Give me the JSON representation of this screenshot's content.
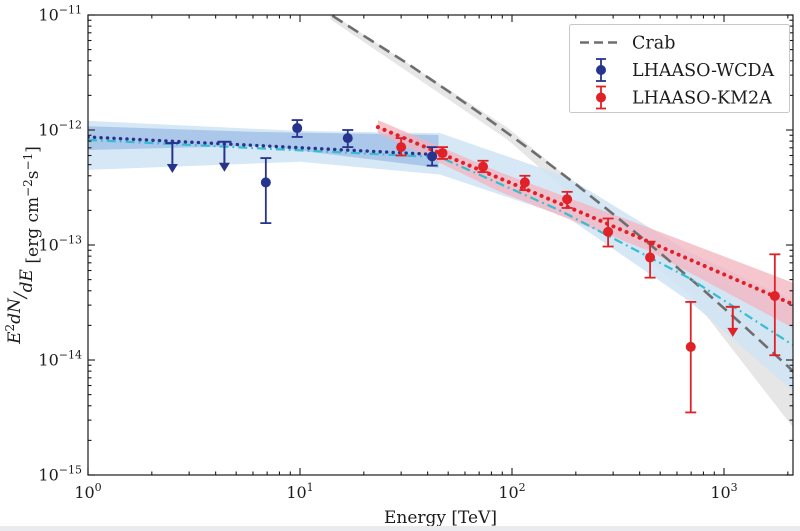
{
  "figure": {
    "background": "#ffffff"
  },
  "chart_data": {
    "type": "scatter",
    "title": "",
    "xlabel": "Energy [TeV]",
    "ylabel": "E²dN/dE [erg cm⁻²s⁻¹]",
    "ylabel_rich": [
      {
        "t": "E",
        "i": true
      },
      {
        "t": "2",
        "sup": true
      },
      {
        "t": "dN",
        "i": true
      },
      {
        "t": "/",
        "i": true
      },
      {
        "t": "dE",
        "i": true
      },
      {
        "t": " [erg cm"
      },
      {
        "t": "−2",
        "sup": true
      },
      {
        "t": "s"
      },
      {
        "t": "−1",
        "sup": true
      },
      {
        "t": "]"
      }
    ],
    "xscale": "log",
    "yscale": "log",
    "xlim": [
      1,
      2113
    ],
    "ylim": [
      1e-15,
      1e-11
    ],
    "x_tick_exponents": [
      0,
      1,
      2,
      3
    ],
    "y_tick_exponents": [
      -11,
      -12,
      -13,
      -14,
      -15
    ],
    "grid": false,
    "legend": {
      "position": "upper right",
      "entries": [
        {
          "label": "Crab",
          "marker": "dashed-line",
          "color": "#6e6e6e"
        },
        {
          "label": "LHAASO-WCDA",
          "marker": "errorbar-point",
          "color": "#27348e"
        },
        {
          "label": "LHAASO-KM2A",
          "marker": "errorbar-point",
          "color": "#e02128"
        }
      ]
    },
    "colors": {
      "wcda": "#27348e",
      "km2a": "#e02128",
      "crab": "#6e6e6e",
      "model_line": "#35bdd0",
      "wcda_band": "#a9c6e9",
      "model_band": "#cfe3f4",
      "km2a_band": "#f3b3bd",
      "crab_band": "#d2d2d2"
    },
    "series": {
      "crab_line": {
        "name": "Crab",
        "style": "dashed",
        "points": [
          [
            12,
            1.2e-11
          ],
          [
            20,
            6.6e-12
          ],
          [
            31.6,
            3.86e-12
          ],
          [
            50,
            2.18e-12
          ],
          [
            79.4,
            1.2e-12
          ],
          [
            126,
            6.45e-13
          ],
          [
            200,
            3.38e-13
          ],
          [
            316,
            1.72e-13
          ],
          [
            501,
            8.5e-14
          ],
          [
            794,
            4.11e-14
          ],
          [
            1259,
            1.93e-14
          ],
          [
            1995,
            8.85e-15
          ],
          [
            2239,
            7.2e-15
          ]
        ]
      },
      "crab_band": {
        "top": [
          [
            13.9,
            1.04e-11
          ],
          [
            95.6,
            1.04e-12
          ],
          [
            331,
            1.57e-13
          ],
          [
            692,
            6.7e-14
          ],
          [
            2113,
            1.9e-14
          ]
        ],
        "bottom": [
          [
            13.9,
            9.2e-12
          ],
          [
            95.6,
            8.2e-13
          ],
          [
            331,
            1.1e-13
          ],
          [
            692,
            3.7e-14
          ],
          [
            2113,
            2.6e-15
          ]
        ]
      },
      "model_line": {
        "name": "broken-power-law-model",
        "style": "dashdot",
        "points": [
          [
            1,
            8.2e-13
          ],
          [
            45.7,
            5.8e-13
          ],
          [
            168,
            2e-13
          ],
          [
            692,
            5.1e-14
          ],
          [
            2113,
            1.35e-14
          ]
        ]
      },
      "model_band": {
        "top": [
          [
            1,
            1.2e-12
          ],
          [
            10,
            9.8e-13
          ],
          [
            45.7,
            9.4e-13
          ],
          [
            182,
            3.9e-13
          ],
          [
            692,
            8.6e-14
          ],
          [
            2113,
            3.3e-14
          ]
        ],
        "bottom": [
          [
            1,
            4.5e-13
          ],
          [
            10,
            5.3e-13
          ],
          [
            45.7,
            4.1e-13
          ],
          [
            182,
            1.75e-13
          ],
          [
            692,
            3.2e-14
          ],
          [
            2113,
            5.4e-15
          ]
        ]
      },
      "wcda_fit": {
        "name": "WCDA power-law fit",
        "style": "dotted",
        "points": [
          [
            1,
            8.7e-13
          ],
          [
            45,
            6.1e-13
          ]
        ]
      },
      "wcda_band": {
        "top": [
          [
            1,
            1.08e-12
          ],
          [
            6.5,
            9.6e-13
          ],
          [
            45,
            9.05e-13
          ]
        ],
        "bottom": [
          [
            1,
            6.7e-13
          ],
          [
            6.5,
            7.3e-13
          ],
          [
            45,
            4.7e-13
          ]
        ]
      },
      "km2a_fit": {
        "name": "KM2A power-law fit",
        "style": "dotted",
        "points": [
          [
            23.3,
            1.06e-12
          ],
          [
            233,
            1.78e-13
          ],
          [
            2113,
            3.05e-14
          ]
        ]
      },
      "km2a_band": {
        "top": [
          [
            23.3,
            1.22e-12
          ],
          [
            87.7,
            4.3e-13
          ],
          [
            448,
            1.4e-13
          ],
          [
            2113,
            4.7e-14
          ]
        ],
        "bottom": [
          [
            23.3,
            9.4e-13
          ],
          [
            87.7,
            2.9e-13
          ],
          [
            448,
            8.8e-14
          ],
          [
            2113,
            1.9e-14
          ]
        ]
      },
      "wcda_points": {
        "label": "LHAASO-WCDA",
        "data": [
          {
            "e": 2.5,
            "f": 7.7e-13,
            "upper_limit": true
          },
          {
            "e": 4.4,
            "f": 7.9e-13,
            "upper_limit": true
          },
          {
            "e": 6.9,
            "f": 3.5e-13,
            "lo": 1.55e-13,
            "hi": 5.7e-13
          },
          {
            "e": 9.7,
            "f": 1.04e-12,
            "lo": 8.7e-13,
            "hi": 1.22e-12
          },
          {
            "e": 16.8,
            "f": 8.5e-13,
            "lo": 7.1e-13,
            "hi": 1e-12
          },
          {
            "e": 42,
            "f": 5.9e-13,
            "lo": 4.9e-13,
            "hi": 7.1e-13
          }
        ]
      },
      "km2a_points": {
        "label": "LHAASO-KM2A",
        "data": [
          {
            "e": 30,
            "f": 7.1e-13,
            "lo": 6e-13,
            "hi": 8.5e-13
          },
          {
            "e": 47,
            "f": 6.3e-13,
            "lo": 5.6e-13,
            "hi": 7.1e-13
          },
          {
            "e": 73,
            "f": 4.8e-13,
            "lo": 4.3e-13,
            "hi": 5.4e-13
          },
          {
            "e": 115,
            "f": 3.5e-13,
            "lo": 3e-13,
            "hi": 4e-13
          },
          {
            "e": 182,
            "f": 2.5e-13,
            "lo": 2.1e-13,
            "hi": 2.9e-13
          },
          {
            "e": 284,
            "f": 1.3e-13,
            "lo": 9.7e-14,
            "hi": 1.7e-13
          },
          {
            "e": 448,
            "f": 7.8e-14,
            "lo": 5.2e-14,
            "hi": 1.07e-13
          },
          {
            "e": 697,
            "f": 1.3e-14,
            "lo": 3.5e-15,
            "hi": 3.2e-14
          },
          {
            "e": 1100,
            "f": 2.9e-14,
            "upper_limit": true
          },
          {
            "e": 1737,
            "f": 3.6e-14,
            "lo": 1.1e-14,
            "hi": 8.3e-14
          }
        ]
      }
    }
  }
}
